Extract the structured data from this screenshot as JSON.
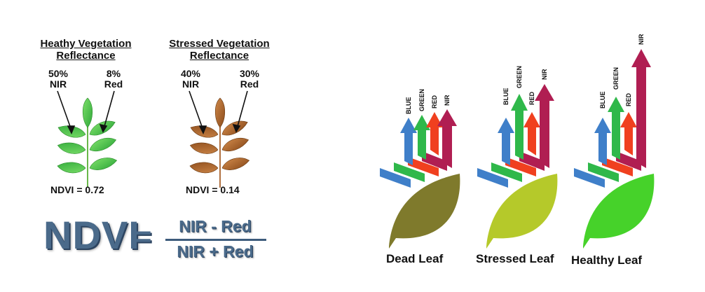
{
  "left": {
    "healthy": {
      "title_line1": "Heathy Vegetation",
      "title_line2": "Reflectance",
      "nir_pct": "50%",
      "nir_label": "NIR",
      "red_pct": "8%",
      "red_label": "Red",
      "ndvi": "NDVI = 0.72",
      "leaf_color": "#4fc94a"
    },
    "stressed": {
      "title_line1": "Stressed Vegetation",
      "title_line2": "Reflectance",
      "nir_pct": "40%",
      "nir_label": "NIR",
      "red_pct": "30%",
      "red_label": "Red",
      "ndvi": "NDVI = 0.14",
      "leaf_color": "#b0652a"
    },
    "formula": {
      "lhs": "NDVI",
      "equals": "=",
      "numerator": "NIR - Red",
      "denominator": "NIR + Red"
    }
  },
  "right": {
    "leaves": [
      {
        "label": "Dead Leaf",
        "color": "#7f7a2c",
        "bands": {
          "blue": "BLUE",
          "green": "GREEN",
          "red": "RED",
          "nir": "NIR"
        }
      },
      {
        "label": "Stressed Leaf",
        "color": "#b5c92a",
        "bands": {
          "blue": "BLUE",
          "green": "GREEN",
          "red": "RED",
          "nir": "NIR"
        }
      },
      {
        "label": "Healthy Leaf",
        "color": "#46d22a",
        "bands": {
          "blue": "BLUE",
          "green": "GREEN",
          "red": "RED",
          "nir": "NIR"
        }
      }
    ],
    "colors": {
      "blue": "#3f7fc9",
      "green": "#2fb84a",
      "red": "#f0401f",
      "nir": "#b01e52"
    }
  }
}
